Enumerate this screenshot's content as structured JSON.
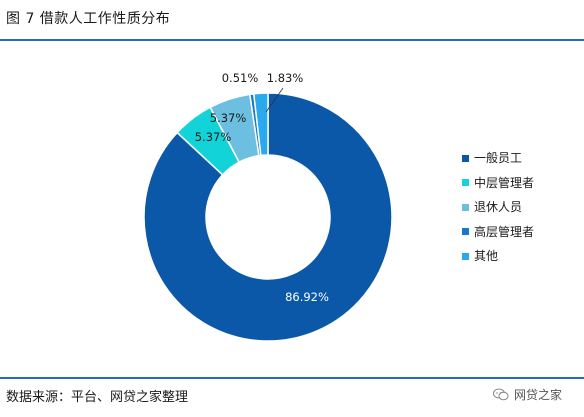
{
  "header": {
    "title": "图 7 借款人工作性质分布"
  },
  "footer": {
    "source": "数据来源：平台、网贷之家整理",
    "brand": "网贷之家"
  },
  "colors": {
    "rule": "#1f6cc2"
  },
  "chart_data": {
    "type": "pie",
    "donut": true,
    "title": "",
    "categories": [
      "一般员工",
      "中层管理者",
      "退休人员",
      "高层管理者",
      "其他"
    ],
    "values": [
      86.92,
      5.37,
      5.37,
      0.51,
      1.83
    ],
    "labels": [
      "86.92%",
      "5.37%",
      "5.37%",
      "0.51%",
      "1.83%"
    ],
    "colors": [
      "#0b58a8",
      "#12d4d8",
      "#6cbfe0",
      "#1879c8",
      "#2aa9ec"
    ],
    "legend_position": "right"
  }
}
